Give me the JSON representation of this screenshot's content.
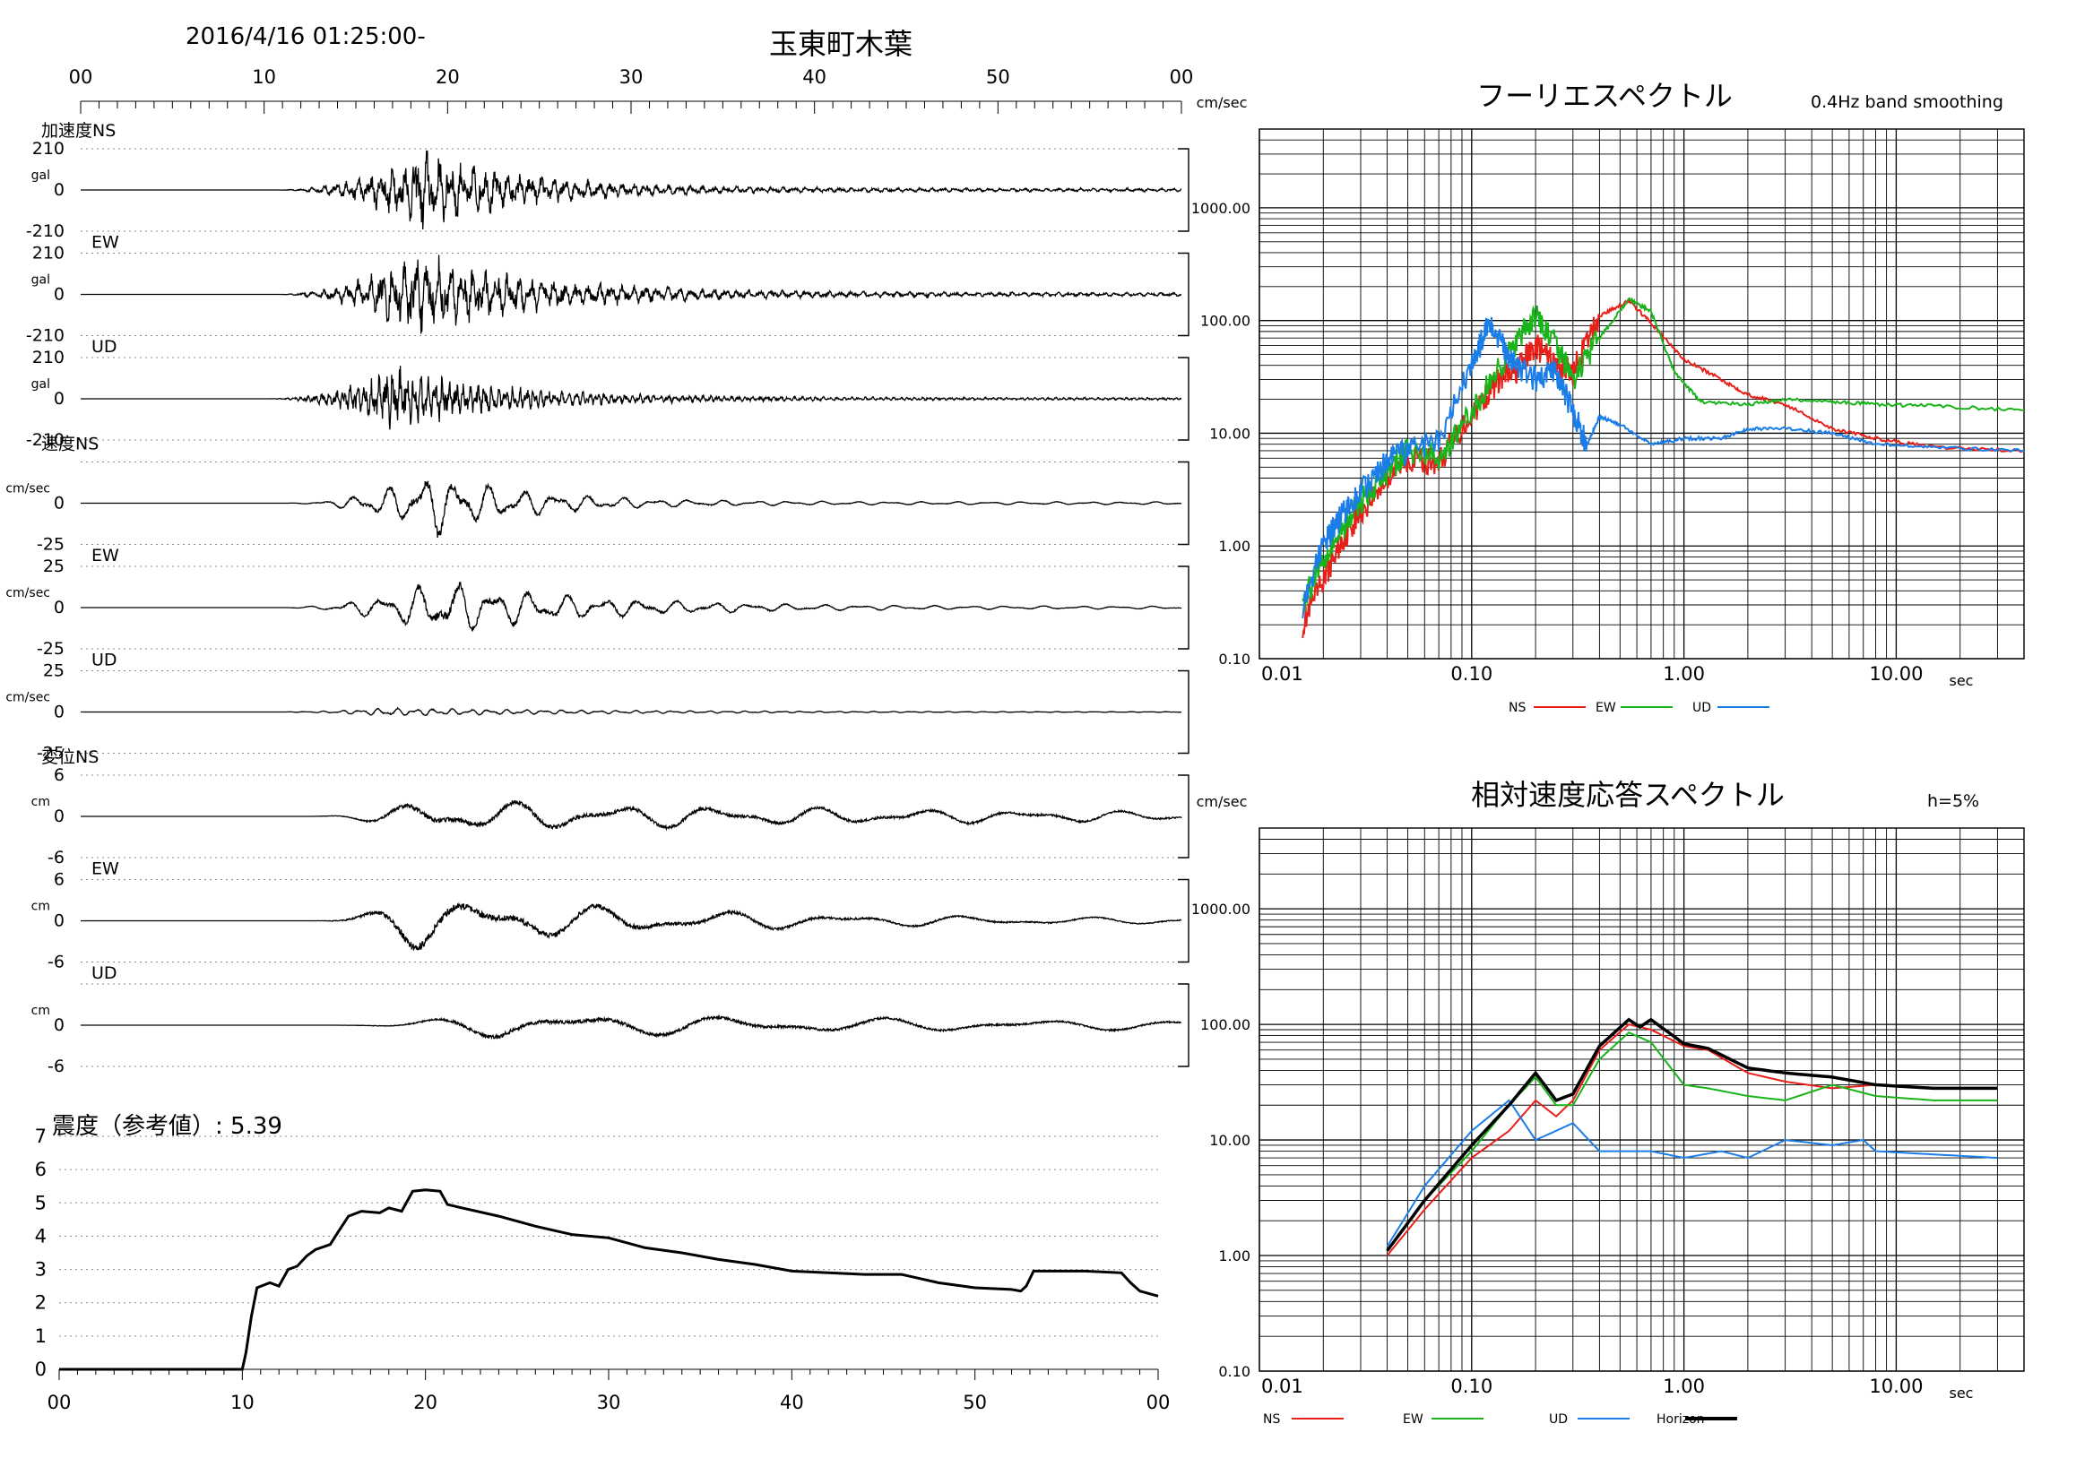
{
  "header": {
    "datetime": "2016/4/16 01:25:00-",
    "station": "玉東町木葉"
  },
  "waveforms": {
    "time_ticks": [
      "00",
      "10",
      "20",
      "30",
      "40",
      "50",
      "00"
    ],
    "panels": [
      {
        "group": "加速度",
        "comp": "NS",
        "unit": "gal",
        "max": "210",
        "zero": "0",
        "min": "-210",
        "amp": 0.85,
        "onset": 10.5,
        "peak": 19,
        "freq": 1.6,
        "decay": 0.11
      },
      {
        "group": "",
        "comp": "EW",
        "unit": "gal",
        "max": "210",
        "zero": "0",
        "min": "-210",
        "amp": 0.9,
        "onset": 10.5,
        "peak": 18.5,
        "freq": 1.6,
        "decay": 0.09
      },
      {
        "group": "",
        "comp": "UD",
        "unit": "gal",
        "max": "210",
        "zero": "0",
        "min": "-210",
        "amp": 0.65,
        "onset": 10,
        "peak": 17.5,
        "freq": 2.6,
        "decay": 0.1
      },
      {
        "group": "速度",
        "comp": "NS",
        "unit": "cm/sec",
        "max": "",
        "zero": "0",
        "min": "-25",
        "amp": 0.9,
        "onset": 11,
        "peak": 19.5,
        "freq": 0.55,
        "decay": 0.12
      },
      {
        "group": "",
        "comp": "EW",
        "unit": "cm/sec",
        "max": "25",
        "zero": "0",
        "min": "-25",
        "amp": 0.8,
        "onset": 10.5,
        "peak": 20,
        "freq": 0.5,
        "decay": 0.08
      },
      {
        "group": "",
        "comp": "UD",
        "unit": "cm/sec",
        "max": "25",
        "zero": "0",
        "min": "-25",
        "amp": 0.12,
        "onset": 10,
        "peak": 17,
        "freq": 1.0,
        "decay": 0.05
      },
      {
        "group": "変位",
        "comp": "NS",
        "unit": "cm",
        "max": "6",
        "zero": "0",
        "min": "-6",
        "amp": 0.5,
        "onset": 12,
        "peak": 19,
        "freq": 0.18,
        "decay": 0.02
      },
      {
        "group": "",
        "comp": "EW",
        "unit": "cm",
        "max": "6",
        "zero": "0",
        "min": "-6",
        "amp": 0.8,
        "onset": 12,
        "peak": 18.5,
        "freq": 0.15,
        "decay": 0.04
      },
      {
        "group": "",
        "comp": "UD",
        "unit": "cm",
        "max": "",
        "zero": "0",
        "min": "-6",
        "amp": 0.4,
        "onset": 13,
        "peak": 23,
        "freq": 0.12,
        "decay": 0.02
      }
    ]
  },
  "intensity": {
    "label": "震度（参考値）: 5.39",
    "y_ticks": [
      "0",
      "1",
      "2",
      "3",
      "4",
      "5",
      "6",
      "7"
    ],
    "x_ticks": [
      "00",
      "10",
      "20",
      "30",
      "40",
      "50",
      "00"
    ],
    "series": [
      [
        0,
        0
      ],
      [
        10,
        0
      ],
      [
        10.2,
        0.5
      ],
      [
        10.5,
        1.6
      ],
      [
        10.8,
        2.45
      ],
      [
        11.5,
        2.6
      ],
      [
        12,
        2.5
      ],
      [
        12.5,
        3.0
      ],
      [
        13,
        3.1
      ],
      [
        13.5,
        3.4
      ],
      [
        14,
        3.6
      ],
      [
        14.8,
        3.75
      ],
      [
        15.2,
        4.1
      ],
      [
        15.8,
        4.6
      ],
      [
        16.5,
        4.75
      ],
      [
        17.5,
        4.7
      ],
      [
        18,
        4.85
      ],
      [
        18.7,
        4.75
      ],
      [
        19.3,
        5.35
      ],
      [
        20,
        5.39
      ],
      [
        20.8,
        5.35
      ],
      [
        21.2,
        4.95
      ],
      [
        22,
        4.85
      ],
      [
        24,
        4.6
      ],
      [
        26,
        4.3
      ],
      [
        28,
        4.05
      ],
      [
        30,
        3.95
      ],
      [
        32,
        3.65
      ],
      [
        34,
        3.5
      ],
      [
        36,
        3.3
      ],
      [
        38,
        3.15
      ],
      [
        40,
        2.95
      ],
      [
        42,
        2.9
      ],
      [
        44,
        2.85
      ],
      [
        46,
        2.85
      ],
      [
        48,
        2.6
      ],
      [
        50,
        2.45
      ],
      [
        52,
        2.4
      ],
      [
        52.5,
        2.35
      ],
      [
        52.8,
        2.5
      ],
      [
        53.2,
        2.95
      ],
      [
        56,
        2.95
      ],
      [
        58,
        2.9
      ],
      [
        58.5,
        2.6
      ],
      [
        59,
        2.35
      ],
      [
        60,
        2.2
      ]
    ]
  },
  "chart_data": [
    {
      "type": "line",
      "title": "フーリエスペクトル",
      "subtitle": "0.4Hz band smoothing",
      "ylabel": "cm/sec",
      "xlabel": "sec",
      "xscale": "log",
      "yscale": "log",
      "xlim": [
        0.01,
        40
      ],
      "ylim": [
        0.1,
        5000
      ],
      "x_ticks": [
        "0.01",
        "0.10",
        "1.00",
        "10.00"
      ],
      "y_ticks": [
        "0.10",
        "1.00",
        "10.00",
        "100.00",
        "1000.00"
      ],
      "legend": [
        "NS",
        "EW",
        "UD"
      ],
      "series": [
        {
          "name": "NS",
          "color": "#e8201a",
          "x": [
            0.016,
            0.02,
            0.025,
            0.03,
            0.04,
            0.05,
            0.07,
            0.1,
            0.13,
            0.16,
            0.2,
            0.25,
            0.3,
            0.4,
            0.55,
            0.7,
            1.0,
            1.5,
            2.0,
            3.0,
            5.0,
            8.0,
            15.0,
            40.0
          ],
          "y": [
            0.2,
            0.5,
            1.2,
            2.0,
            4.0,
            6.0,
            5.5,
            15,
            28,
            35,
            60,
            40,
            35,
            110,
            150,
            95,
            45,
            30,
            22,
            18,
            11,
            9,
            7.5,
            7
          ]
        },
        {
          "name": "EW",
          "color": "#19b31a",
          "x": [
            0.016,
            0.02,
            0.025,
            0.03,
            0.04,
            0.05,
            0.07,
            0.1,
            0.13,
            0.16,
            0.2,
            0.25,
            0.3,
            0.4,
            0.55,
            0.7,
            0.9,
            1.2,
            2.0,
            3.0,
            5.0,
            8.0,
            15.0,
            40.0
          ],
          "y": [
            0.3,
            0.8,
            1.5,
            2.5,
            4.5,
            7,
            6,
            15,
            35,
            60,
            110,
            60,
            30,
            70,
            155,
            120,
            35,
            19,
            18,
            20,
            19,
            18,
            17.5,
            16
          ]
        },
        {
          "name": "UD",
          "color": "#1a7de8",
          "x": [
            0.016,
            0.02,
            0.025,
            0.03,
            0.04,
            0.05,
            0.07,
            0.1,
            0.12,
            0.14,
            0.16,
            0.2,
            0.25,
            0.3,
            0.35,
            0.4,
            0.5,
            0.7,
            1.0,
            1.5,
            2.0,
            3.0,
            5.0,
            8.0,
            15.0,
            40.0
          ],
          "y": [
            0.3,
            1.0,
            2.0,
            3.0,
            5.5,
            7,
            9,
            40,
            90,
            60,
            40,
            30,
            35,
            15,
            8,
            14,
            12,
            8,
            9,
            9,
            11,
            11,
            10,
            8,
            7.5,
            7
          ]
        }
      ]
    },
    {
      "type": "line",
      "title": "相対速度応答スペクトル",
      "subtitle": "h=5%",
      "ylabel": "cm/sec",
      "xlabel": "sec",
      "xscale": "log",
      "yscale": "log",
      "xlim": [
        0.01,
        40
      ],
      "ylim": [
        0.1,
        5000
      ],
      "x_ticks": [
        "0.01",
        "0.10",
        "1.00",
        "10.00"
      ],
      "y_ticks": [
        "0.10",
        "1.00",
        "10.00",
        "100.00",
        "1000.00"
      ],
      "legend": [
        "NS",
        "EW",
        "UD",
        "Horizon"
      ],
      "series": [
        {
          "name": "NS",
          "color": "#e8201a",
          "x": [
            0.04,
            0.06,
            0.1,
            0.15,
            0.2,
            0.25,
            0.3,
            0.4,
            0.55,
            0.7,
            1.0,
            1.3,
            2.0,
            3.0,
            5.0,
            8.0,
            15.0,
            30.0
          ],
          "y": [
            1.0,
            2.5,
            7,
            12,
            22,
            16,
            22,
            60,
            100,
            90,
            65,
            60,
            38,
            32,
            28,
            30,
            28,
            28
          ]
        },
        {
          "name": "EW",
          "color": "#19b31a",
          "x": [
            0.04,
            0.06,
            0.1,
            0.15,
            0.2,
            0.25,
            0.3,
            0.4,
            0.55,
            0.7,
            1.0,
            1.3,
            2.0,
            3.0,
            5.0,
            8.0,
            15.0,
            30.0
          ],
          "y": [
            1.1,
            3,
            8,
            20,
            35,
            20,
            20,
            50,
            85,
            70,
            30,
            28,
            24,
            22,
            30,
            24,
            22,
            22
          ]
        },
        {
          "name": "UD",
          "color": "#1a7de8",
          "x": [
            0.04,
            0.06,
            0.1,
            0.15,
            0.2,
            0.25,
            0.3,
            0.4,
            0.55,
            0.7,
            1.0,
            1.5,
            2.0,
            3.0,
            5.0,
            7.0,
            8.0,
            15.0,
            30.0
          ],
          "y": [
            1.2,
            4,
            12,
            22,
            10,
            12,
            14,
            8,
            8,
            8,
            7,
            8,
            7,
            10,
            9,
            10,
            8,
            7.5,
            7
          ]
        },
        {
          "name": "Horizon",
          "color": "#000000",
          "x": [
            0.04,
            0.06,
            0.1,
            0.15,
            0.2,
            0.25,
            0.3,
            0.4,
            0.55,
            0.62,
            0.7,
            1.0,
            1.3,
            2.0,
            3.0,
            5.0,
            8.0,
            15.0,
            30.0
          ],
          "y": [
            1.1,
            3,
            9,
            20,
            38,
            22,
            25,
            65,
            110,
            95,
            110,
            68,
            62,
            42,
            38,
            35,
            30,
            28,
            28
          ]
        }
      ]
    }
  ]
}
